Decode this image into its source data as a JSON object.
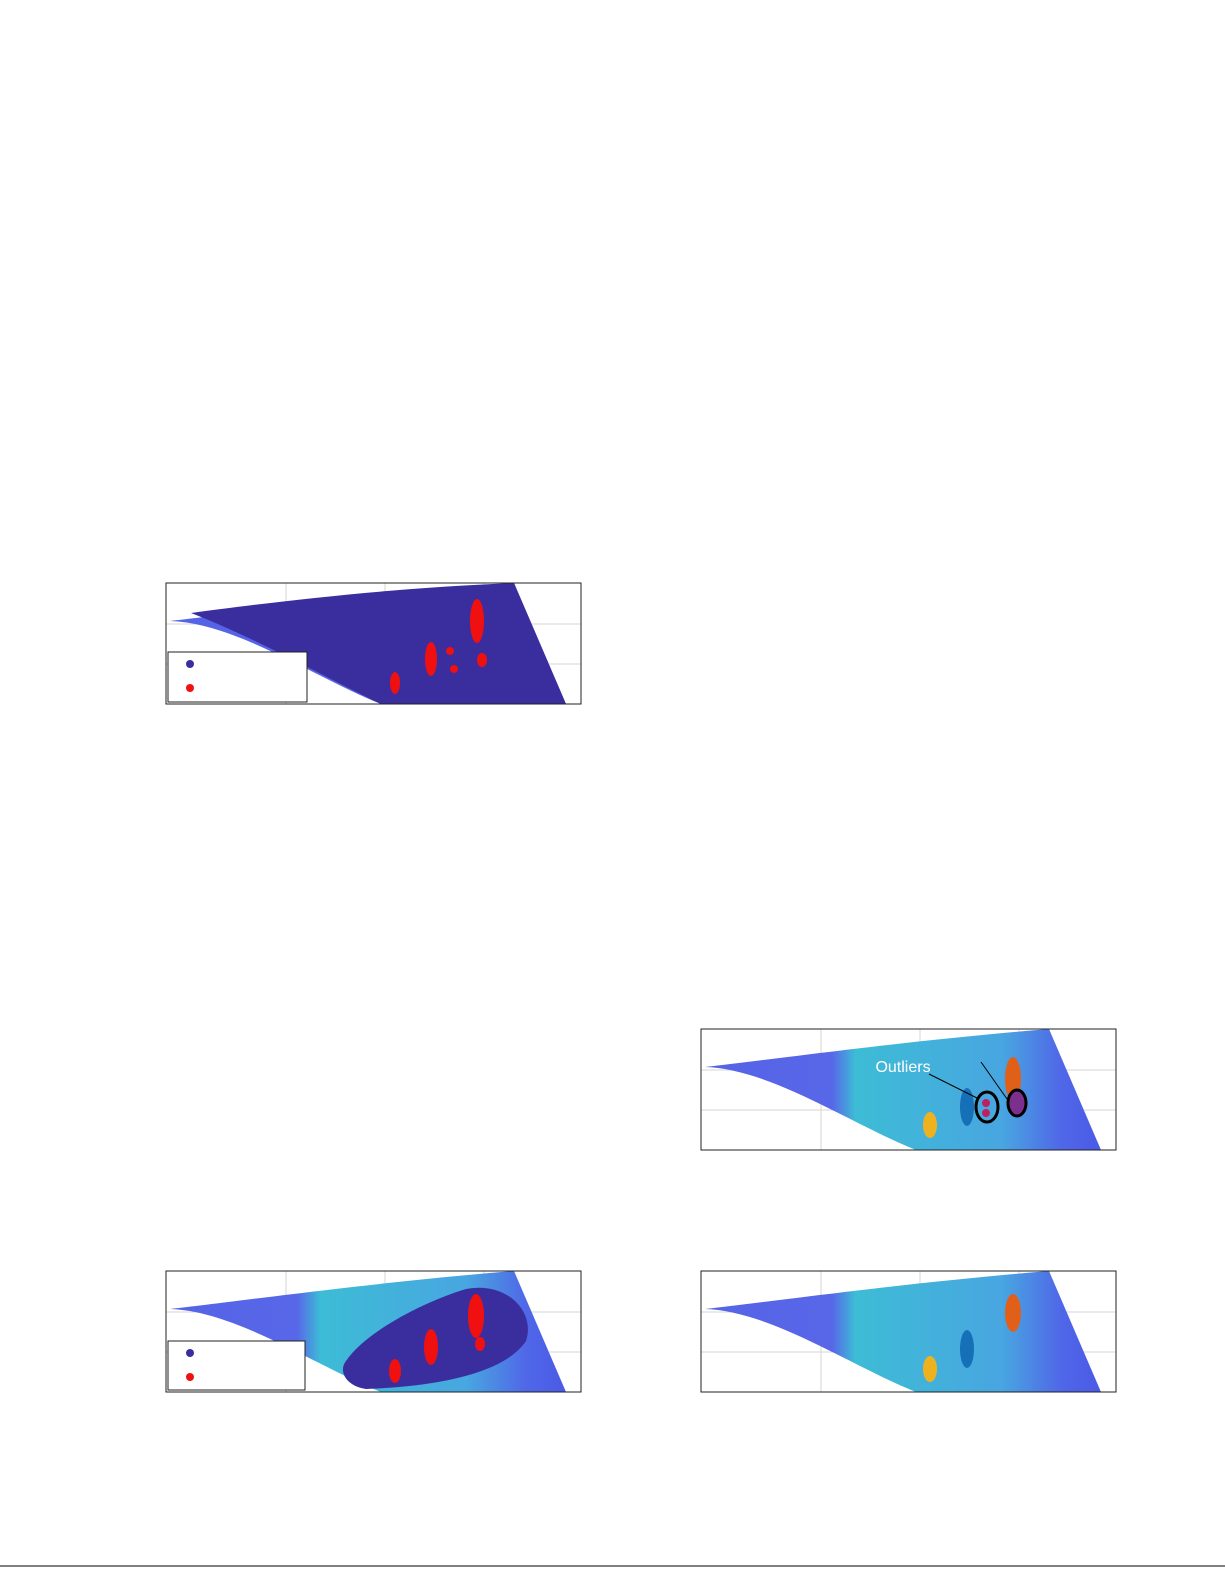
{
  "annotation": "Outliers"
}
